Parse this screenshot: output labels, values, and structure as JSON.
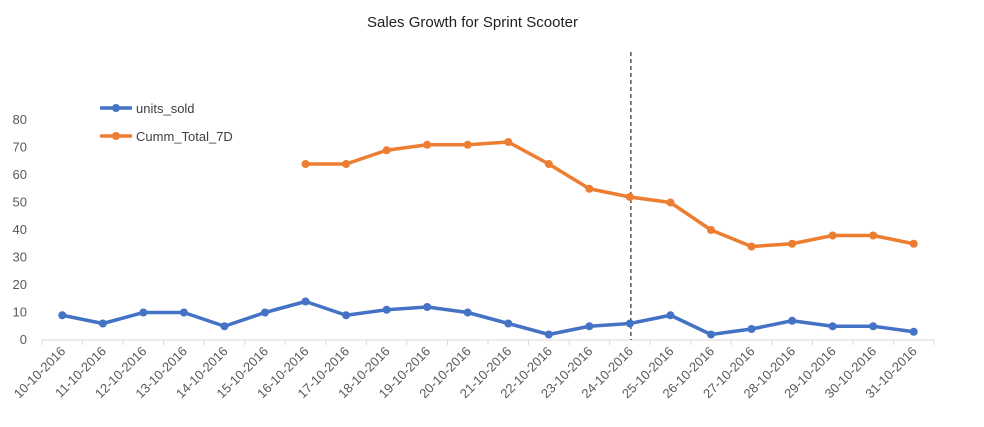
{
  "chart_data": {
    "type": "line",
    "title": "Sales Growth for Sprint Scooter",
    "xlabel": "",
    "ylabel": "",
    "categories": [
      "10-10-2016",
      "11-10-2016",
      "12-10-2016",
      "13-10-2016",
      "14-10-2016",
      "15-10-2016",
      "16-10-2016",
      "17-10-2016",
      "18-10-2016",
      "19-10-2016",
      "20-10-2016",
      "21-10-2016",
      "22-10-2016",
      "23-10-2016",
      "24-10-2016",
      "25-10-2016",
      "26-10-2016",
      "27-10-2016",
      "28-10-2016",
      "29-10-2016",
      "30-10-2016",
      "31-10-2016"
    ],
    "y_ticks": [
      0,
      10,
      20,
      30,
      40,
      50,
      60,
      70,
      80
    ],
    "ylim": [
      0,
      80
    ],
    "grid": false,
    "legend_position": "top-left",
    "series": [
      {
        "name": "units_sold",
        "color": "#4472c4",
        "values": [
          9,
          6,
          10,
          10,
          5,
          10,
          14,
          9,
          11,
          12,
          10,
          6,
          2,
          5,
          6,
          9,
          2,
          4,
          7,
          5,
          5,
          3
        ]
      },
      {
        "name": "Cumm_Total_7D",
        "color": "#ed7d31",
        "values": [
          null,
          null,
          null,
          null,
          null,
          null,
          64,
          64,
          69,
          71,
          71,
          72,
          64,
          55,
          52,
          50,
          40,
          34,
          35,
          38,
          38,
          35
        ]
      }
    ],
    "reference_line": {
      "category": "24-10-2016",
      "style": "dashed",
      "color": "#000000"
    }
  }
}
